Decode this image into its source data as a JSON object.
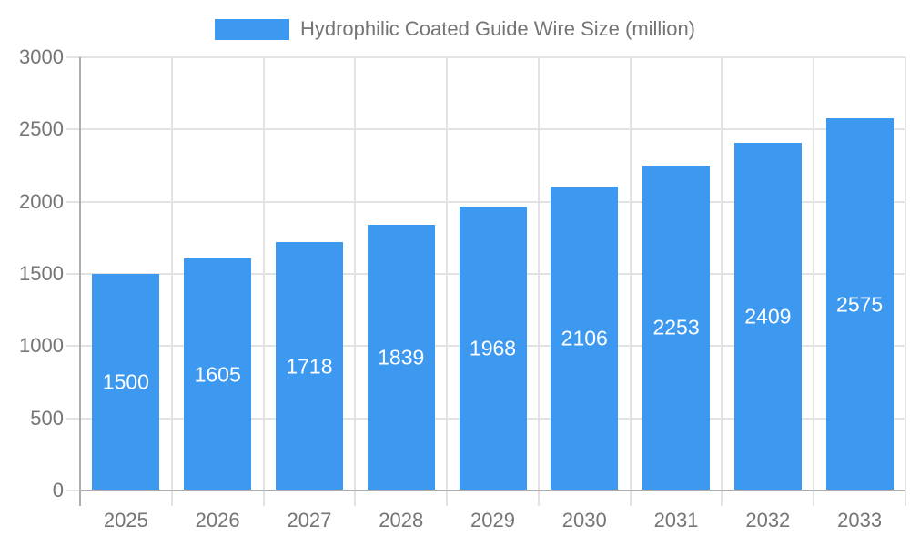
{
  "legend": {
    "label": "Hydrophilic Coated Guide Wire Size (million)"
  },
  "chart_data": {
    "type": "bar",
    "title": "Hydrophilic Coated Guide Wire Size (million)",
    "categories": [
      "2025",
      "2026",
      "2027",
      "2028",
      "2029",
      "2030",
      "2031",
      "2032",
      "2033"
    ],
    "values": [
      1500,
      1605,
      1718,
      1839,
      1968,
      2106,
      2253,
      2409,
      2575
    ],
    "xlabel": "",
    "ylabel": "",
    "ylim": [
      0,
      3000
    ],
    "yticks": [
      0,
      500,
      1000,
      1500,
      2000,
      2500,
      3000
    ],
    "grid": true,
    "legend_position": "top-center",
    "value_labels": "inside-center",
    "colors": {
      "bar": "#3D99F0",
      "bar_label_text": "#ffffff",
      "axis_text": "#757575",
      "grid_line": "#e3e3e3",
      "axis_line": "#adadad",
      "background": "#ffffff"
    }
  }
}
